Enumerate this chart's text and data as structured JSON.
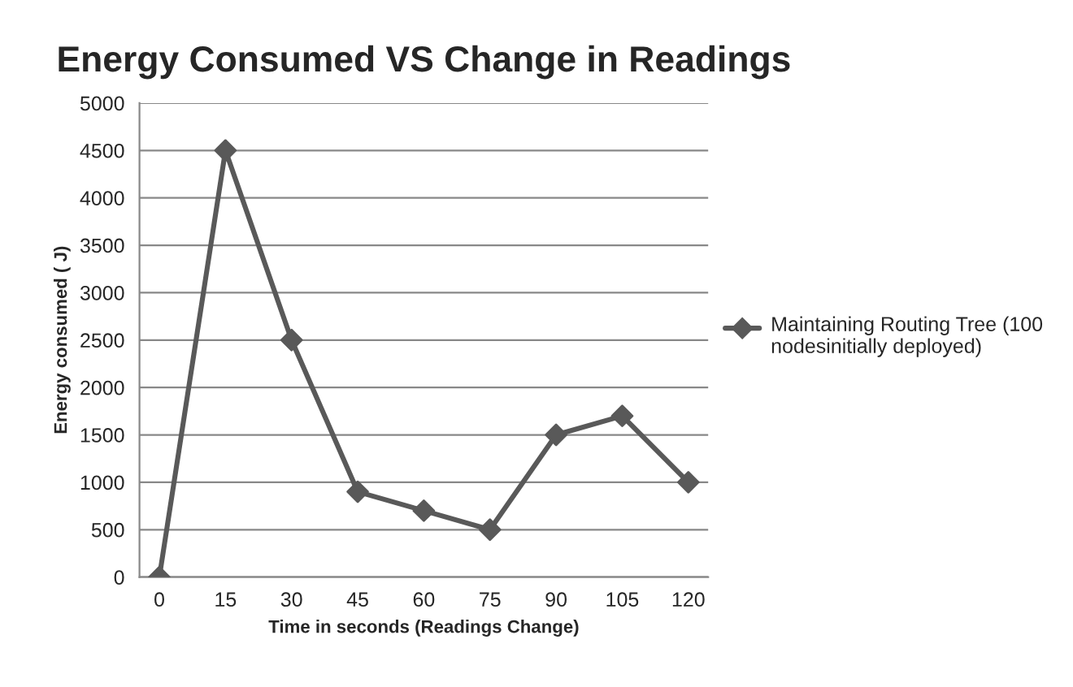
{
  "chart_data": {
    "type": "line",
    "title": "Energy Consumed VS Change in Readings",
    "xlabel": "Time in seconds (Readings Change)",
    "ylabel": "Energy consumed ( J)",
    "categories": [
      "0",
      "15",
      "30",
      "45",
      "60",
      "75",
      "90",
      "105",
      "120"
    ],
    "series": [
      {
        "name": "Maintaining Routing Tree (100 nodesinitially deployed)",
        "color": "#595959",
        "values": [
          0,
          4500,
          2500,
          900,
          700,
          500,
          1500,
          1700,
          1000
        ]
      }
    ],
    "ylim": [
      0,
      5000
    ],
    "yticks": [
      0,
      500,
      1000,
      1500,
      2000,
      2500,
      3000,
      3500,
      4000,
      4500,
      5000
    ],
    "grid": "y",
    "legend": "right",
    "marker": "diamond",
    "line_style": "solid"
  }
}
